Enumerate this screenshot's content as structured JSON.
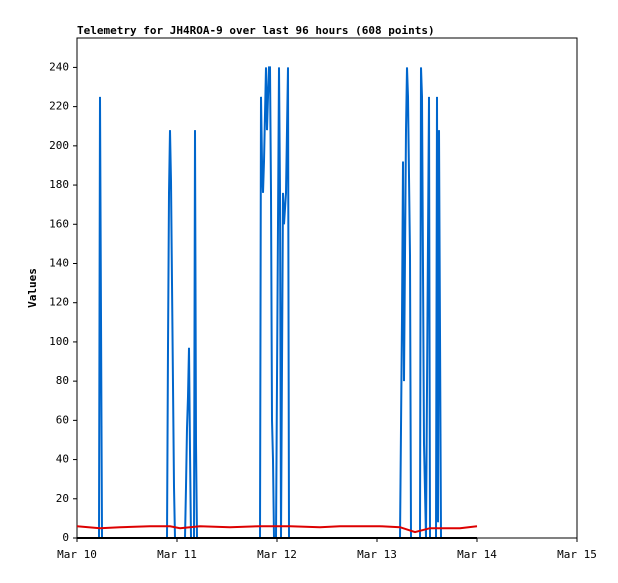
{
  "chart_data": {
    "type": "line",
    "title": "Telemetry for JH4ROA-9 over last 96 hours (608 points)",
    "y_label": "Values",
    "xlim": [
      10,
      15
    ],
    "xticks": [
      {
        "value": 10,
        "label": "Mar 10"
      },
      {
        "value": 11,
        "label": "Mar 11"
      },
      {
        "value": 12,
        "label": "Mar 12"
      },
      {
        "value": 13,
        "label": "Mar 13"
      },
      {
        "value": 14,
        "label": "Mar 14"
      },
      {
        "value": 15,
        "label": "Mar 15"
      }
    ],
    "ylim": [
      0,
      255
    ],
    "yticks": [
      0,
      20,
      40,
      60,
      80,
      100,
      120,
      140,
      160,
      180,
      200,
      220,
      240
    ],
    "grid": false,
    "series": [
      {
        "color": "#0066cc",
        "x": [
          10,
          10.22,
          10.23,
          10.24,
          10.25,
          10.9,
          10.91,
          10.92,
          10.93,
          10.94,
          10.95,
          10.96,
          10.97,
          10.98,
          11.08,
          11.09,
          11.1,
          11.11,
          11.12,
          11.13,
          11.14,
          11.17,
          11.18,
          11.19,
          11.2,
          11.83,
          11.84,
          11.85,
          11.86,
          11.87,
          11.89,
          11.9,
          11.91,
          11.92,
          11.93,
          11.94,
          11.95,
          11.96,
          11.97,
          11.99,
          12.02,
          12.03,
          12.04,
          12.06,
          12.07,
          12.09,
          12.11,
          12.12,
          13.23,
          13.24,
          13.25,
          13.26,
          13.27,
          13.29,
          13.3,
          13.31,
          13.33,
          13.34,
          13.43,
          13.44,
          13.45,
          13.47,
          13.49,
          13.51,
          13.52,
          13.53,
          13.59,
          13.6,
          13.61,
          13.62,
          13.63,
          13.64,
          14
        ],
        "values": [
          0,
          0,
          225,
          112,
          0,
          0,
          97,
          176,
          208,
          182,
          130,
          78,
          26,
          0,
          0,
          26,
          56,
          72,
          97,
          44,
          0,
          0,
          208,
          48,
          0,
          0,
          225,
          192,
          176,
          192,
          240,
          208,
          225,
          240,
          240,
          176,
          60,
          40,
          0,
          0,
          240,
          176,
          0,
          176,
          160,
          176,
          240,
          0,
          0,
          56,
          112,
          192,
          80,
          208,
          240,
          225,
          144,
          0,
          0,
          240,
          225,
          48,
          0,
          152,
          225,
          0,
          0,
          225,
          8,
          208,
          104,
          0,
          0
        ]
      },
      {
        "color": "#dd0000",
        "x": [
          10,
          10.23,
          10.43,
          10.73,
          10.93,
          11.03,
          11.23,
          11.53,
          11.83,
          12.13,
          12.43,
          12.63,
          13.03,
          13.23,
          13.38,
          13.53,
          13.83,
          14
        ],
        "values": [
          6,
          5,
          5.5,
          6,
          6,
          5,
          6,
          5.5,
          6,
          6,
          5.5,
          6,
          6,
          5.5,
          3,
          5,
          5,
          6
        ]
      },
      {
        "color": "#000000",
        "x": [
          10,
          14
        ],
        "values": [
          0,
          0
        ]
      }
    ]
  }
}
